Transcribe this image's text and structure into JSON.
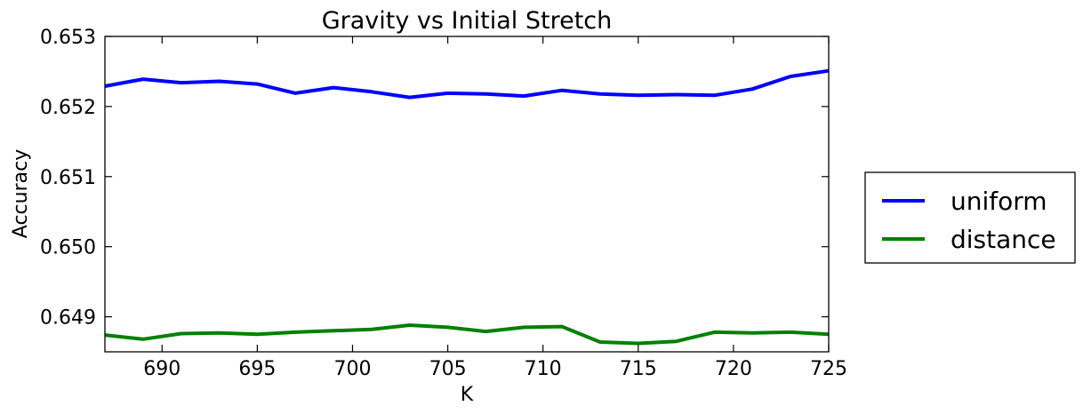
{
  "chart_data": {
    "type": "line",
    "title": "Gravity vs Initial Stretch",
    "xlabel": "K",
    "ylabel": "Accuracy",
    "xlim": [
      687,
      725
    ],
    "ylim": [
      0.6485,
      0.653
    ],
    "xticks": [
      690,
      695,
      700,
      705,
      710,
      715,
      720,
      725
    ],
    "xtick_labels": [
      "690",
      "695",
      "700",
      "705",
      "710",
      "715",
      "720",
      "725"
    ],
    "yticks": [
      0.649,
      0.65,
      0.651,
      0.652,
      0.653
    ],
    "ytick_labels": [
      "0.649",
      "0.650",
      "0.651",
      "0.652",
      "0.653"
    ],
    "grid": false,
    "legend_position": "outside-right",
    "x": [
      687,
      689,
      691,
      693,
      695,
      697,
      699,
      701,
      703,
      705,
      707,
      709,
      711,
      713,
      715,
      717,
      719,
      721,
      723,
      725
    ],
    "series": [
      {
        "name": "uniform",
        "color": "#0000ff",
        "values": [
          0.65229,
          0.65239,
          0.65234,
          0.65236,
          0.65232,
          0.65219,
          0.65227,
          0.65221,
          0.65213,
          0.65219,
          0.65218,
          0.65215,
          0.65223,
          0.65218,
          0.65216,
          0.65217,
          0.65216,
          0.65225,
          0.65243,
          0.65251
        ]
      },
      {
        "name": "distance",
        "color": "#008000",
        "values": [
          0.64874,
          0.64868,
          0.64876,
          0.64877,
          0.64875,
          0.64878,
          0.6488,
          0.64882,
          0.64888,
          0.64885,
          0.64879,
          0.64885,
          0.64886,
          0.64864,
          0.64862,
          0.64865,
          0.64878,
          0.64877,
          0.64878,
          0.64875
        ]
      }
    ]
  }
}
